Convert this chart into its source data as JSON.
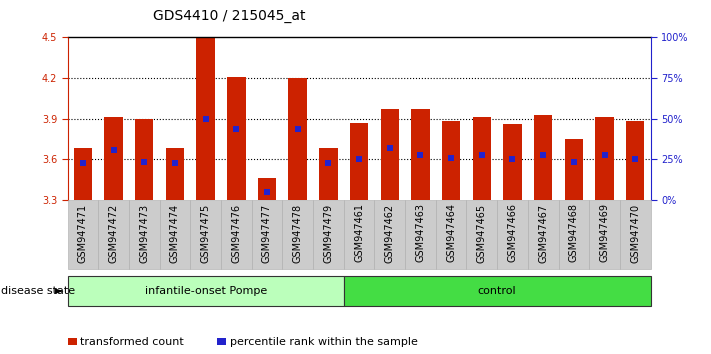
{
  "title": "GDS4410 / 215045_at",
  "samples": [
    "GSM947471",
    "GSM947472",
    "GSM947473",
    "GSM947474",
    "GSM947475",
    "GSM947476",
    "GSM947477",
    "GSM947478",
    "GSM947479",
    "GSM947461",
    "GSM947462",
    "GSM947463",
    "GSM947464",
    "GSM947465",
    "GSM947466",
    "GSM947467",
    "GSM947468",
    "GSM947469",
    "GSM947470"
  ],
  "bar_values": [
    3.68,
    3.91,
    3.9,
    3.68,
    4.5,
    4.21,
    3.46,
    4.2,
    3.68,
    3.87,
    3.97,
    3.97,
    3.88,
    3.91,
    3.86,
    3.93,
    3.75,
    3.91,
    3.88
  ],
  "percentile_values": [
    3.57,
    3.67,
    3.58,
    3.57,
    3.9,
    3.82,
    3.36,
    3.82,
    3.57,
    3.6,
    3.68,
    3.63,
    3.61,
    3.63,
    3.6,
    3.63,
    3.58,
    3.63,
    3.6
  ],
  "n_pompe": 9,
  "n_control": 10,
  "ymin": 3.3,
  "ymax": 4.5,
  "yticks": [
    3.3,
    3.6,
    3.9,
    4.2,
    4.5
  ],
  "pct_ticks": [
    0,
    25,
    50,
    75,
    100
  ],
  "bar_color": "#cc2200",
  "blue_color": "#2222cc",
  "pompe_color": "#bbffbb",
  "control_color": "#44dd44",
  "gray_color": "#cccccc",
  "legend_items": [
    "transformed count",
    "percentile rank within the sample"
  ],
  "background_color": "#ffffff",
  "left_axis_color": "#cc2200",
  "right_axis_color": "#2222cc",
  "pompe_label": "infantile-onset Pompe",
  "control_label": "control",
  "disease_state_label": "disease state",
  "title_fontsize": 10,
  "tick_fontsize": 7,
  "label_fontsize": 8
}
